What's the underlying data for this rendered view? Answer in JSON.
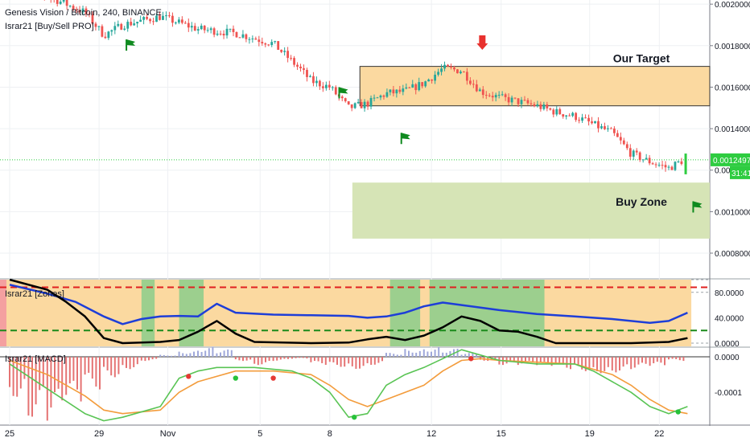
{
  "header": {
    "symbol_line": "Genesis Vision / Bitcoin, 240, BINANCE",
    "indicator_line": "Israr21 [Buy/Sell PRO]"
  },
  "colors": {
    "up": "#26a69a",
    "down": "#ef5350",
    "target_zone": "#fbd9a0",
    "buy_zone": "#d6e4b6",
    "blue_line": "#1e3ed8",
    "black_line": "#000000",
    "price_label": "#2ecc40"
  },
  "chart_data": [
    {
      "type": "candlestick",
      "title": "Genesis Vision / Bitcoin, 240, BINANCE",
      "x_ticks": [
        "25",
        "29",
        "Nov",
        "5",
        "8",
        "12",
        "15",
        "19",
        "22"
      ],
      "y_ticks": [
        "0.0020000",
        "0.0018000",
        "0.0016000",
        "0.0014000",
        "0.0012000",
        "0.0010000",
        "0.0008000"
      ],
      "ylim": [
        0.00068,
        0.00202
      ],
      "current_price": {
        "label": "0.0012497",
        "value": 0.0012497,
        "timer": "31:41"
      },
      "close_path": [
        [
          0,
          0.0021
        ],
        [
          2.5,
          0.00202
        ],
        [
          4,
          0.00196
        ],
        [
          5,
          0.00185
        ],
        [
          6,
          0.0019
        ],
        [
          8,
          0.00194
        ],
        [
          10,
          0.00188
        ],
        [
          12,
          0.00186
        ],
        [
          14,
          0.00181
        ],
        [
          15.5,
          0.00168
        ],
        [
          16,
          0.00163
        ],
        [
          17,
          0.0016
        ],
        [
          18,
          0.0015
        ],
        [
          19,
          0.00152
        ],
        [
          20,
          0.00157
        ],
        [
          21,
          0.00158
        ],
        [
          22,
          0.00162
        ],
        [
          23,
          0.00169
        ],
        [
          24,
          0.00168
        ],
        [
          25,
          0.00158
        ],
        [
          26,
          0.00155
        ],
        [
          27,
          0.00153
        ],
        [
          28,
          0.00151
        ],
        [
          29,
          0.00148
        ],
        [
          30,
          0.00146
        ],
        [
          31,
          0.00142
        ],
        [
          32,
          0.00138
        ],
        [
          33,
          0.00128
        ],
        [
          34,
          0.00124
        ],
        [
          35,
          0.00121
        ],
        [
          35.8,
          0.00125
        ]
      ],
      "zones": [
        {
          "label": "Our Target",
          "top": 0.0017,
          "bottom": 0.00151,
          "x_start": 18.6,
          "x_end": 50
        },
        {
          "label": "Buy Zone",
          "top": 0.00114,
          "bottom": 0.00087,
          "x_start": 18.2,
          "x_end": 50
        }
      ],
      "buy_flags": [
        {
          "x": 6.2,
          "price": 0.00183
        },
        {
          "x": 17.5,
          "price": 0.0016
        },
        {
          "x": 20.8,
          "price": 0.00138
        },
        {
          "x": 36.3,
          "price": 0.00105
        }
      ],
      "sell_arrows": [
        {
          "x": 25.1,
          "price": 0.00178
        }
      ],
      "up_arrows": [
        {
          "x": 43.2,
          "price": 0.00117
        }
      ]
    },
    {
      "type": "line",
      "title": "Israr21 [Zones]",
      "y_ticks": [
        "80.0000",
        "40.0000",
        "0.0000"
      ],
      "ylim": [
        -5,
        100
      ],
      "levels": {
        "upper": 88,
        "lower": 20
      },
      "blue_line": [
        [
          0,
          92
        ],
        [
          2,
          78
        ],
        [
          3.5,
          65
        ],
        [
          5,
          42
        ],
        [
          6,
          30
        ],
        [
          7,
          38
        ],
        [
          8,
          42
        ],
        [
          9,
          43
        ],
        [
          10,
          42
        ],
        [
          11,
          62
        ],
        [
          12,
          48
        ],
        [
          14,
          45
        ],
        [
          16,
          44
        ],
        [
          18,
          43
        ],
        [
          19,
          40
        ],
        [
          20,
          42
        ],
        [
          21,
          48
        ],
        [
          22,
          58
        ],
        [
          23,
          64
        ],
        [
          24,
          60
        ],
        [
          25,
          56
        ],
        [
          26,
          52
        ],
        [
          28,
          46
        ],
        [
          30,
          42
        ],
        [
          32,
          38
        ],
        [
          34,
          32
        ],
        [
          35,
          35
        ],
        [
          36,
          48
        ]
      ],
      "black_line": [
        [
          0,
          100
        ],
        [
          2,
          84
        ],
        [
          3,
          65
        ],
        [
          4,
          42
        ],
        [
          5,
          8
        ],
        [
          6,
          0
        ],
        [
          8,
          2
        ],
        [
          9,
          5
        ],
        [
          10,
          18
        ],
        [
          11,
          35
        ],
        [
          12,
          15
        ],
        [
          13,
          2
        ],
        [
          16,
          0
        ],
        [
          18,
          1
        ],
        [
          19,
          6
        ],
        [
          20,
          10
        ],
        [
          21,
          5
        ],
        [
          22,
          12
        ],
        [
          23,
          25
        ],
        [
          24,
          42
        ],
        [
          25,
          35
        ],
        [
          26,
          20
        ],
        [
          27,
          18
        ],
        [
          28,
          10
        ],
        [
          29,
          0
        ],
        [
          33,
          0
        ],
        [
          35,
          2
        ],
        [
          36,
          8
        ]
      ],
      "green_bands": [
        [
          7,
          7.7
        ],
        [
          9,
          10.3
        ],
        [
          20.2,
          21.8
        ],
        [
          22.3,
          28.4
        ]
      ]
    },
    {
      "type": "bar",
      "title": "Israr21 [MACD]",
      "y_ticks": [
        "0.0000",
        "-0.0001"
      ],
      "ylim": [
        -0.00019,
        2.5e-05
      ],
      "histogram": [
        -0.0001,
        -0.00015,
        -0.00016,
        -0.00012,
        -8e-05,
        -5e-05,
        -3e-05,
        -1e-05,
        5e-06,
        1.5e-05,
        2.5e-05,
        1.8e-05,
        -1e-05,
        -2e-05,
        -1e-05,
        -5e-06,
        -2e-05,
        -2.5e-05,
        -3e-05,
        -2e-05,
        1e-05,
        2e-05,
        2.5e-05,
        2e-05,
        1e-05,
        -1e-05,
        -2e-05,
        -2e-05,
        -2.5e-05,
        -3e-05,
        -3.5e-05,
        -4e-05,
        -3.8e-05,
        -3e-05,
        -2.5e-05,
        -1e-05
      ],
      "macd_line": [
        [
          0,
          -2e-05
        ],
        [
          2,
          -9e-05
        ],
        [
          4,
          -0.00016
        ],
        [
          5,
          -0.00018
        ],
        [
          6,
          -0.00017
        ],
        [
          8,
          -0.00014
        ],
        [
          9,
          -6e-05
        ],
        [
          10,
          -4e-05
        ],
        [
          11,
          -3e-05
        ],
        [
          13,
          -3e-05
        ],
        [
          15,
          -4e-05
        ],
        [
          16,
          -6e-05
        ],
        [
          17,
          -0.0001
        ],
        [
          18,
          -0.00017
        ],
        [
          19,
          -0.00016
        ],
        [
          20,
          -8e-05
        ],
        [
          21,
          -5e-05
        ],
        [
          22,
          -3e-05
        ],
        [
          23,
          -5e-06
        ],
        [
          24,
          2e-05
        ],
        [
          25,
          5e-06
        ],
        [
          26,
          -1e-05
        ],
        [
          28,
          -2e-05
        ],
        [
          30,
          -2e-05
        ],
        [
          31,
          -4e-05
        ],
        [
          33,
          -0.0001
        ],
        [
          34,
          -0.00014
        ],
        [
          35,
          -0.00016
        ],
        [
          36,
          -0.00014
        ]
      ],
      "signal_line": [
        [
          0,
          -1e-05
        ],
        [
          2,
          -5e-05
        ],
        [
          4,
          -0.00011
        ],
        [
          5,
          -0.00015
        ],
        [
          6,
          -0.00016
        ],
        [
          8,
          -0.00015
        ],
        [
          9,
          -0.0001
        ],
        [
          10,
          -7e-05
        ],
        [
          12,
          -4e-05
        ],
        [
          14,
          -4e-05
        ],
        [
          16,
          -5e-05
        ],
        [
          17,
          -8e-05
        ],
        [
          18,
          -0.00012
        ],
        [
          19,
          -0.00014
        ],
        [
          20,
          -0.00012
        ],
        [
          22,
          -8e-05
        ],
        [
          23,
          -4e-05
        ],
        [
          24,
          -1e-05
        ],
        [
          25,
          -5e-06
        ],
        [
          26,
          -1e-05
        ],
        [
          28,
          -1.5e-05
        ],
        [
          30,
          -2e-05
        ],
        [
          32,
          -5e-05
        ],
        [
          33,
          -8e-05
        ],
        [
          34,
          -0.00012
        ],
        [
          35,
          -0.00015
        ],
        [
          36,
          -0.00016
        ]
      ],
      "cross_dots": [
        [
          9.5,
          -5.5e-05,
          "down"
        ],
        [
          12,
          -6e-05,
          "up"
        ],
        [
          14,
          -6e-05,
          "down"
        ],
        [
          18.3,
          -0.00017,
          "up"
        ],
        [
          24.5,
          -5e-06,
          "down"
        ],
        [
          35.5,
          -0.000155,
          "up"
        ]
      ]
    }
  ]
}
